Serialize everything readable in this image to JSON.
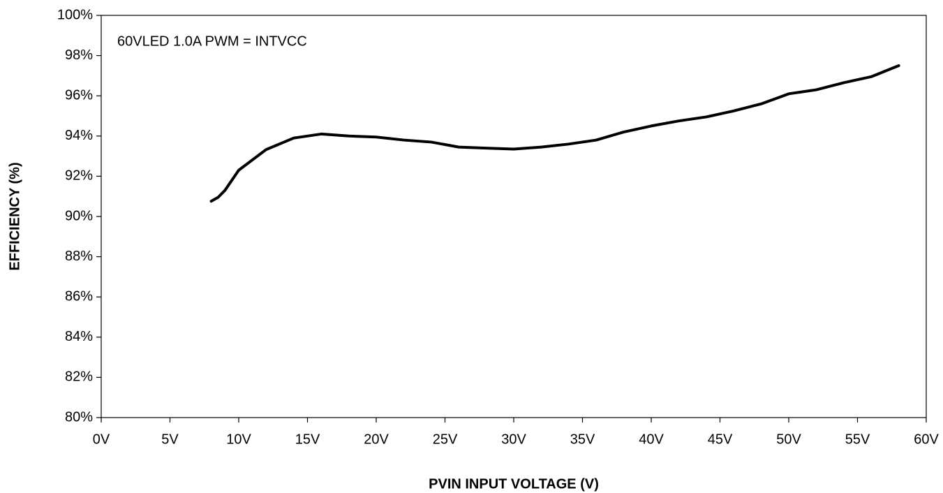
{
  "chart_data": {
    "type": "line",
    "annotation": "60VLED 1.0A PWM = INTVCC",
    "x_label": "PVIN INPUT VOLTAGE (V)",
    "y_label": "EFFICIENCY (%)",
    "grid": false,
    "xlim": [
      0,
      60
    ],
    "xticks": [
      {
        "value": 0,
        "label": "0V"
      },
      {
        "value": 5,
        "label": "5V"
      },
      {
        "value": 10,
        "label": "10V"
      },
      {
        "value": 15,
        "label": "15V"
      },
      {
        "value": 20,
        "label": "20V"
      },
      {
        "value": 25,
        "label": "25V"
      },
      {
        "value": 30,
        "label": "30V"
      },
      {
        "value": 35,
        "label": "35V"
      },
      {
        "value": 40,
        "label": "40V"
      },
      {
        "value": 45,
        "label": "45V"
      },
      {
        "value": 50,
        "label": "50V"
      },
      {
        "value": 55,
        "label": "55V"
      },
      {
        "value": 60,
        "label": "60V"
      }
    ],
    "ylim": [
      80,
      100
    ],
    "yticks": [
      {
        "value": 80,
        "label": "80%"
      },
      {
        "value": 82,
        "label": "82%"
      },
      {
        "value": 84,
        "label": "84%"
      },
      {
        "value": 86,
        "label": "86%"
      },
      {
        "value": 88,
        "label": "88%"
      },
      {
        "value": 90,
        "label": "90%"
      },
      {
        "value": 92,
        "label": "92%"
      },
      {
        "value": 94,
        "label": "94%"
      },
      {
        "value": 96,
        "label": "96%"
      },
      {
        "value": 98,
        "label": "98%"
      },
      {
        "value": 100,
        "label": "100%"
      }
    ],
    "x": [
      8,
      8.5,
      9,
      9.5,
      10,
      12,
      14,
      16,
      18,
      20,
      22,
      24,
      26,
      28,
      30,
      32,
      34,
      36,
      38,
      40,
      42,
      44,
      46,
      48,
      50,
      52,
      54,
      56,
      58
    ],
    "series": [
      {
        "color": "#000000",
        "values": [
          90.76,
          90.95,
          91.3,
          91.8,
          92.3,
          93.33,
          93.9,
          94.1,
          94.0,
          93.95,
          93.8,
          93.7,
          93.45,
          93.4,
          93.35,
          93.45,
          93.6,
          93.8,
          94.2,
          94.5,
          94.75,
          94.95,
          95.25,
          95.6,
          96.1,
          96.3,
          96.65,
          96.95,
          97.5
        ]
      }
    ]
  }
}
